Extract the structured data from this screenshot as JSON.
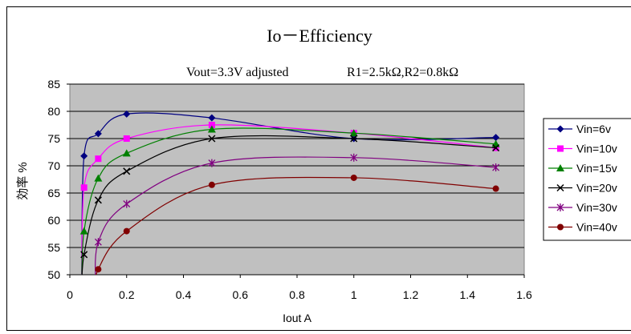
{
  "chart_data": {
    "type": "line",
    "title": "Io－Efficiency",
    "subtitle_left": "Vout=3.3V adjusted",
    "subtitle_right": "R1=2.5kΩ,R2=0.8kΩ",
    "xlabel": "Iout  A",
    "ylabel": "効率 %",
    "xlim": [
      0,
      1.6
    ],
    "ylim": [
      50,
      85
    ],
    "xticks": [
      "0",
      "0.2",
      "0.4",
      "0.6",
      "0.8",
      "1",
      "1.2",
      "1.4",
      "1.6"
    ],
    "yticks": [
      "50",
      "55",
      "60",
      "65",
      "70",
      "75",
      "80",
      "85"
    ],
    "grid": "horizontal",
    "legend_position": "right",
    "series": [
      {
        "name": "Vin=6v",
        "color": "#000080",
        "marker": "diamond",
        "x": [
          0.05,
          0.1,
          0.2,
          0.5,
          1.0,
          1.5
        ],
        "y": [
          71.8,
          75.9,
          79.5,
          78.8,
          75.0,
          75.2
        ]
      },
      {
        "name": "Vin=10v",
        "color": "#ff00ff",
        "marker": "square",
        "x": [
          0.05,
          0.1,
          0.2,
          0.5,
          1.0,
          1.5
        ],
        "y": [
          66.0,
          71.3,
          75.0,
          77.5,
          76.0,
          73.3
        ]
      },
      {
        "name": "Vin=15v",
        "color": "#008000",
        "marker": "triangle",
        "x": [
          0.05,
          0.1,
          0.2,
          0.5,
          1.0,
          1.5
        ],
        "y": [
          58.0,
          67.7,
          72.3,
          76.7,
          76.0,
          74.0
        ]
      },
      {
        "name": "Vin=20v",
        "color": "#000000",
        "marker": "x",
        "x": [
          0.05,
          0.1,
          0.2,
          0.5,
          1.0,
          1.5
        ],
        "y": [
          53.7,
          63.7,
          69.0,
          75.0,
          75.0,
          73.3
        ]
      },
      {
        "name": "Vin=30v",
        "color": "#800080",
        "marker": "star",
        "x": [
          0.1,
          0.2,
          0.5,
          1.0,
          1.5
        ],
        "y": [
          56.0,
          63.0,
          70.5,
          71.5,
          69.7
        ]
      },
      {
        "name": "Vin=40v",
        "color": "#800000",
        "marker": "circle",
        "x": [
          0.1,
          0.2,
          0.5,
          1.0,
          1.5
        ],
        "y": [
          51.0,
          58.0,
          66.5,
          67.8,
          65.8
        ]
      }
    ]
  }
}
